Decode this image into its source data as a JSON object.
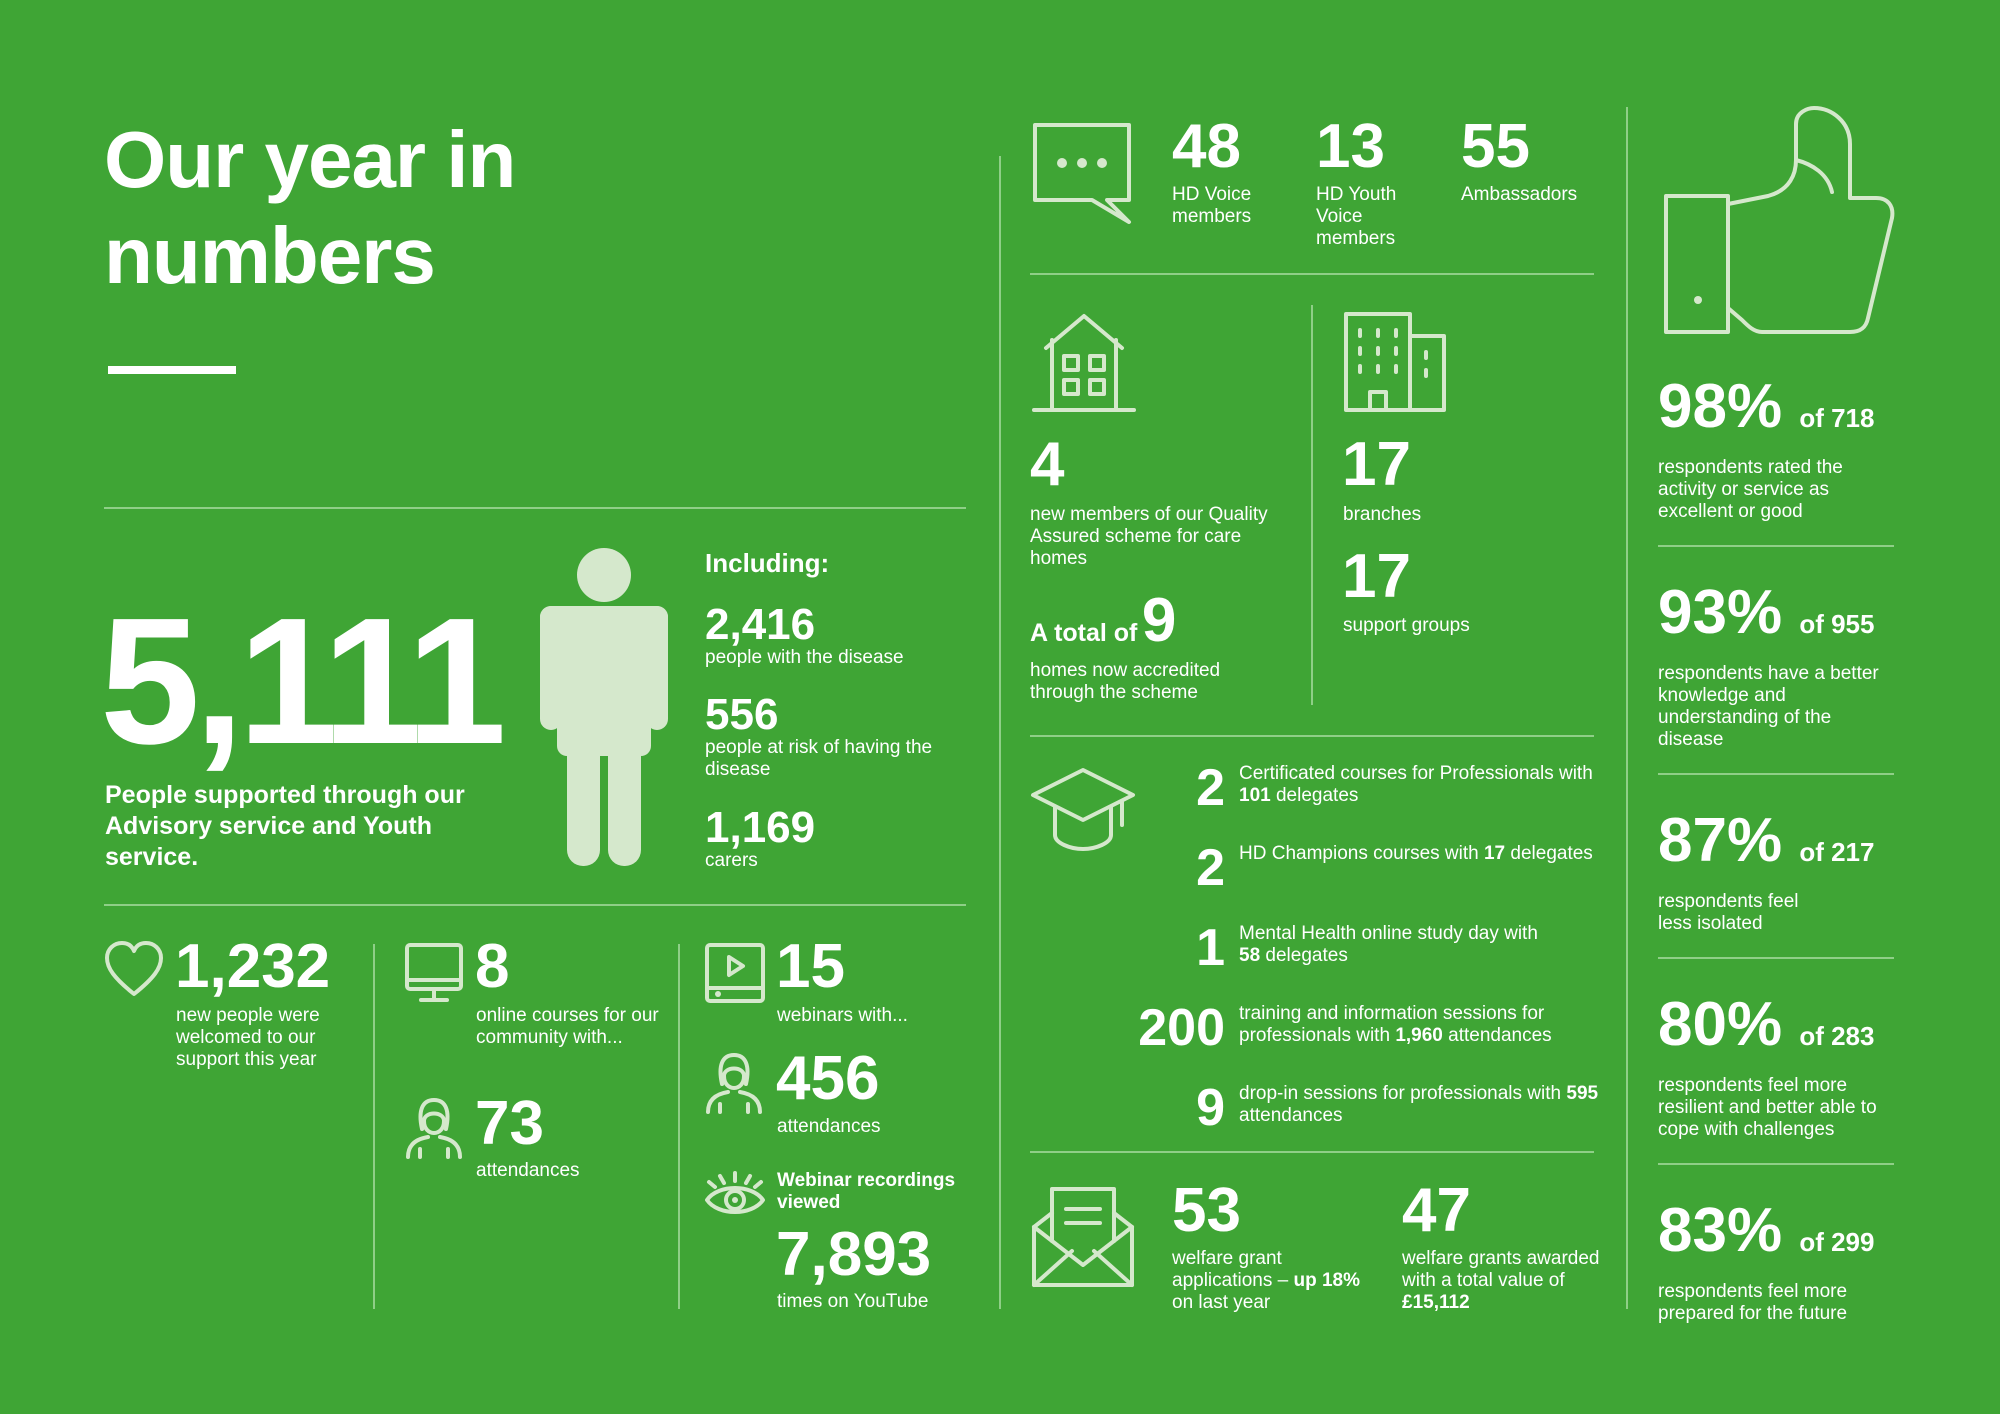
{
  "title": {
    "line1": "Our year in",
    "line2": "numbers"
  },
  "people": {
    "total": "5,111",
    "desc": "People supported through our Advisory service and Youth service.",
    "including_heading": "Including:",
    "items": [
      {
        "value": "2,416",
        "label": "people with the disease"
      },
      {
        "value": "556",
        "label": "people at risk of having the disease"
      },
      {
        "value": "1,169",
        "label": "carers"
      }
    ]
  },
  "bottom_left": {
    "welcomed": {
      "value": "1,232",
      "label": "new people were welcomed to our support this year"
    },
    "online_courses": {
      "value": "8",
      "label": "online courses for our community with..."
    },
    "course_attendances": {
      "value": "73",
      "label": "attendances"
    },
    "webinars": {
      "value": "15",
      "label": "webinars with..."
    },
    "webinar_attendances": {
      "value": "456",
      "label": "attendances"
    },
    "recordings": {
      "heading": "Webinar recordings viewed",
      "value": "7,893",
      "label": "times on YouTube"
    }
  },
  "voice": [
    {
      "value": "48",
      "label": "HD Voice members"
    },
    {
      "value": "13",
      "label": "HD Youth Voice members"
    },
    {
      "value": "55",
      "label": "Ambassadors"
    }
  ],
  "care_homes": {
    "new_value": "4",
    "new_label": "new members of our Quality Assured scheme for care homes",
    "total_prefix": "A total of",
    "total_value": "9",
    "total_label": "homes now accredited through the scheme"
  },
  "branches": {
    "value": "17",
    "label": "branches"
  },
  "support_groups": {
    "value": "17",
    "label": "support groups"
  },
  "courses": [
    {
      "num": "2",
      "text": "Certificated courses for Professionals with",
      "bold": "101",
      "after": " delegates"
    },
    {
      "num": "2",
      "text": "HD Champions courses with",
      "bold": "17",
      "after": " delegates"
    },
    {
      "num": "1",
      "text": "Mental Health online study day with",
      "bold": "58",
      "after": " delegates"
    },
    {
      "num": "200",
      "text": "training and information sessions for professionals with",
      "bold": "1,960",
      "after": " attendances"
    },
    {
      "num": "9",
      "text": "drop-in sessions for professionals with",
      "bold": "595",
      "after": " attendances"
    }
  ],
  "welfare": {
    "applications": {
      "value": "53",
      "text": "welfare grant applications – ",
      "bold1": "up",
      "bold2": "18%",
      "after": " on last year"
    },
    "awarded": {
      "value": "47",
      "text": "welfare grants awarded with a total value of ",
      "bold": "£15,112"
    }
  },
  "satisfaction": [
    {
      "pct": "98%",
      "of": "of 718",
      "label": "respondents rated the activity or service as excellent or good"
    },
    {
      "pct": "93%",
      "of": "of 955",
      "label": "respondents have a better knowledge and understanding of the disease"
    },
    {
      "pct": "87%",
      "of": "of 217",
      "label": "respondents feel less isolated"
    },
    {
      "pct": "80%",
      "of": "of 283",
      "label": "respondents feel more resilient and better able to cope with challenges"
    },
    {
      "pct": "83%",
      "of": "of 299",
      "label": "respondents feel more prepared for the future"
    }
  ],
  "colors": {
    "background": "#3fa535",
    "text": "#ffffff",
    "icon": "#d5e8cc",
    "divider": "#8fcf87"
  }
}
